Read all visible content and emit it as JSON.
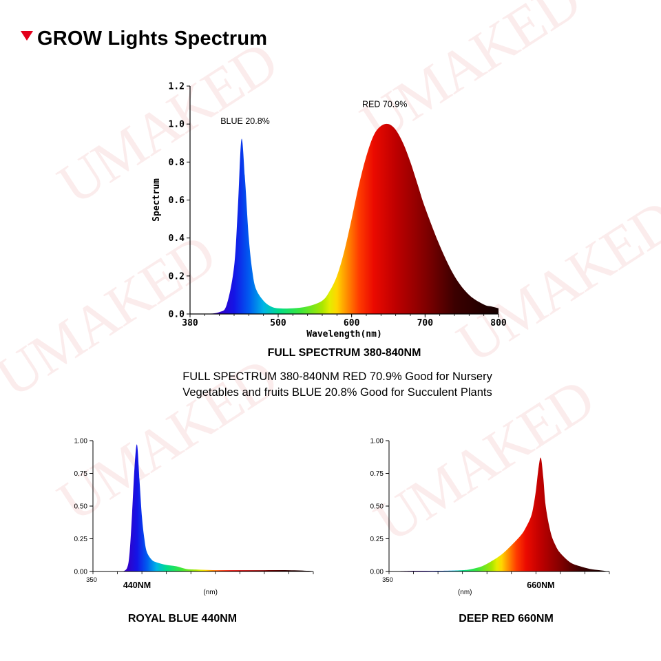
{
  "header": {
    "title": "GROW Lights Spectrum"
  },
  "watermark": {
    "text": "UMAKED"
  },
  "description": {
    "line1": "FULL SPECTRUM 380-840NM RED 70.9% Good for Nursery",
    "line2": "Vegetables and fruits BLUE 20.8% Good for Succulent Plants"
  },
  "chart_data": [
    {
      "type": "area",
      "title": "FULL SPECTRUM 380-840NM",
      "xlabel": "Wavelength(nm)",
      "ylabel": "Spectrum",
      "xlim": [
        380,
        800
      ],
      "ylim": [
        0,
        1.2
      ],
      "x_ticks": [
        "380",
        "500",
        "600",
        "700",
        "800"
      ],
      "y_ticks": [
        "0.0",
        "0.2",
        "0.4",
        "0.6",
        "0.8",
        "1.0",
        "1.2"
      ],
      "x": [
        380,
        400,
        420,
        430,
        440,
        445,
        450,
        455,
        460,
        465,
        470,
        480,
        490,
        500,
        520,
        540,
        560,
        570,
        580,
        590,
        600,
        610,
        620,
        630,
        640,
        650,
        660,
        670,
        680,
        690,
        700,
        720,
        740,
        760,
        780,
        790,
        800
      ],
      "values": [
        0.0,
        0.0,
        0.01,
        0.05,
        0.25,
        0.55,
        0.92,
        0.7,
        0.4,
        0.22,
        0.13,
        0.07,
        0.04,
        0.03,
        0.03,
        0.04,
        0.07,
        0.12,
        0.2,
        0.33,
        0.5,
        0.68,
        0.83,
        0.94,
        0.99,
        1.0,
        0.97,
        0.9,
        0.8,
        0.68,
        0.56,
        0.36,
        0.2,
        0.1,
        0.05,
        0.04,
        0.03
      ],
      "annotations": [
        {
          "text": "BLUE 20.8%",
          "x": 455,
          "y": 1.0
        },
        {
          "text": "RED 70.9%",
          "x": 645,
          "y": 1.09
        }
      ]
    },
    {
      "type": "area",
      "title": "ROYAL BLUE 440NM",
      "xlabel": "(nm)",
      "xlim": [
        350,
        800
      ],
      "ylim": [
        0,
        1.0
      ],
      "x_ticks": [
        "350",
        "440NM"
      ],
      "y_ticks": [
        "0.00",
        "0.25",
        "0.50",
        "0.75",
        "1.00"
      ],
      "x": [
        350,
        400,
        410,
        420,
        425,
        430,
        435,
        440,
        445,
        450,
        455,
        460,
        470,
        480,
        500,
        520,
        540,
        560,
        600,
        650,
        700,
        750,
        790,
        800
      ],
      "values": [
        0.0,
        0.0,
        0.0,
        0.03,
        0.15,
        0.45,
        0.8,
        0.97,
        0.7,
        0.42,
        0.25,
        0.15,
        0.09,
        0.07,
        0.05,
        0.04,
        0.02,
        0.015,
        0.01,
        0.01,
        0.01,
        0.01,
        0.005,
        0.0
      ]
    },
    {
      "type": "area",
      "title": "DEEP RED 660NM",
      "xlabel": "(nm)",
      "xlim": [
        350,
        800
      ],
      "ylim": [
        0,
        1.0
      ],
      "x_ticks": [
        "350",
        "660NM"
      ],
      "y_ticks": [
        "0.00",
        "0.25",
        "0.50",
        "0.75",
        "1.00"
      ],
      "x": [
        350,
        400,
        450,
        500,
        520,
        540,
        560,
        580,
        600,
        620,
        630,
        640,
        645,
        650,
        655,
        660,
        665,
        670,
        680,
        690,
        700,
        720,
        740,
        760,
        780,
        800
      ],
      "values": [
        0.0,
        0.005,
        0.005,
        0.01,
        0.02,
        0.04,
        0.08,
        0.13,
        0.2,
        0.28,
        0.34,
        0.42,
        0.5,
        0.62,
        0.78,
        0.87,
        0.72,
        0.5,
        0.3,
        0.2,
        0.14,
        0.07,
        0.04,
        0.02,
        0.01,
        0.0
      ]
    }
  ]
}
